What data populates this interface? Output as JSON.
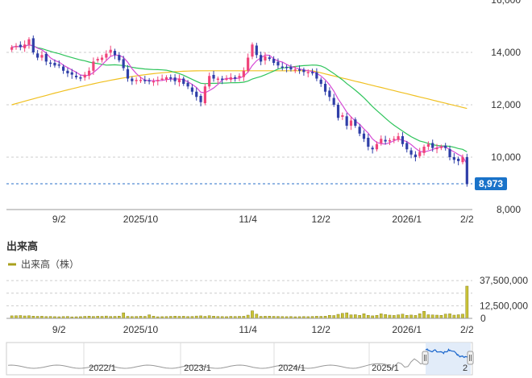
{
  "colors": {
    "up": "#f0437a",
    "down": "#2f3fa8",
    "ma_short": "#d64bd6",
    "ma_mid": "#2ec45b",
    "ma_long": "#f0c020",
    "volume_fill": "#c9c236",
    "volume_stroke": "#8a8420",
    "price_badge": "#1a73c9",
    "nav_fill": "#dde9f8",
    "nav_line": "#1a66cc",
    "nav_history": "#999999"
  },
  "price_chart": {
    "y_ticks": [
      "16,000",
      "14,000",
      "12,000",
      "10,000",
      "8,000"
    ],
    "x_ticks": [
      "9/2",
      "2025/10",
      "11/4",
      "12/2",
      "2026/1",
      "2/2"
    ],
    "current_price_label": "8,973",
    "current_price": 8973
  },
  "volume_chart": {
    "title": "出来高",
    "legend_label": "出来高（株）",
    "y_ticks": [
      "37,500,000",
      "12,500,000",
      "0"
    ],
    "x_ticks": [
      "9/2",
      "2025/10",
      "11/4",
      "12/2",
      "2026/1",
      "2/2"
    ]
  },
  "navigator": {
    "labels": [
      "2022/1",
      "2023/1",
      "2024/1",
      "2025/1",
      "2"
    ]
  },
  "chart_data": {
    "type": "candlestick",
    "ylim": [
      8000,
      16000
    ],
    "volume_ylim": [
      0,
      40000000
    ],
    "closes": [
      14200,
      14250,
      14200,
      14300,
      14500,
      14000,
      13800,
      13900,
      13650,
      13600,
      13500,
      13500,
      13300,
      13200,
      13150,
      13050,
      13000,
      13150,
      13300,
      13650,
      13750,
      13800,
      13950,
      14100,
      13900,
      13700,
      13400,
      13000,
      12900,
      12950,
      12950,
      12900,
      12900,
      12900,
      12950,
      13000,
      13050,
      13000,
      12900,
      13000,
      12800,
      12700,
      12500,
      12300,
      12100,
      12700,
      13100,
      13000,
      13000,
      12950,
      13000,
      13050,
      13000,
      13100,
      13300,
      13800,
      14300,
      13900,
      13650,
      13850,
      13750,
      13600,
      13500,
      13450,
      13400,
      13350,
      13350,
      13300,
      13250,
      13250,
      13200,
      13000,
      12800,
      12500,
      12300,
      12000,
      11500,
      11600,
      11200,
      11400,
      11200,
      10900,
      10700,
      10400,
      10300,
      10500,
      10700,
      10600,
      10650,
      10700,
      10800,
      10500,
      10300,
      10100,
      10000,
      10200,
      10400,
      10500,
      10350,
      10350,
      10400,
      10350,
      10000,
      9900,
      9850,
      10000,
      8973
    ],
    "volumes": [
      2.5,
      2.6,
      2.8,
      2.4,
      2.6,
      2.2,
      2.0,
      2.1,
      1.8,
      1.9,
      1.7,
      1.6,
      1.8,
      1.9,
      1.5,
      1.6,
      1.7,
      2.0,
      2.2,
      1.9,
      2.1,
      2.0,
      2.3,
      1.9,
      2.0,
      2.2,
      5.5,
      2.0,
      1.8,
      1.9,
      2.1,
      2.0,
      3.5,
      2.2,
      1.6,
      1.7,
      1.8,
      2.0,
      2.2,
      2.0,
      2.1,
      1.8,
      1.9,
      2.3,
      2.5,
      2.0,
      2.6,
      2.2,
      1.9,
      1.8,
      1.7,
      2.0,
      1.9,
      2.0,
      2.1,
      3.2,
      7.5,
      4.2,
      2.0,
      2.1,
      2.2,
      2.0,
      1.9,
      1.8,
      1.7,
      1.8,
      1.6,
      1.7,
      1.8,
      1.7,
      1.9,
      2.1,
      2.0,
      2.2,
      3.0,
      2.8,
      4.0,
      5.0,
      5.5,
      3.5,
      3.6,
      3.0,
      4.6,
      3.0,
      2.5,
      3.0,
      4.5,
      3.8,
      3.2,
      2.9,
      3.5,
      4.2,
      3.0,
      3.3,
      2.9,
      4.6,
      7.0,
      3.6,
      3.4,
      3.2,
      3.0,
      4.2,
      4.5,
      3.2,
      3.6,
      4.2,
      32.0
    ]
  }
}
